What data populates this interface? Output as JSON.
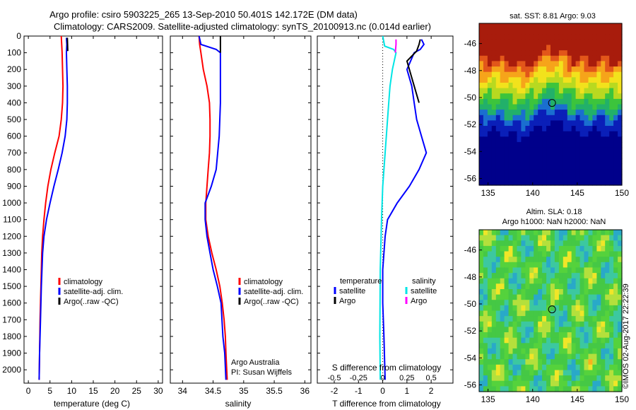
{
  "header": {
    "title_line1": "Argo profile: csiro 5903225_265 13-Sep-2010 50.401S 142.172E (DM data)",
    "title_line2": "Climatology: CARS2009. Satellite-adjusted climatology: synTS_20100913.nc (0.014d earlier)"
  },
  "colors": {
    "climatology": "#ff0000",
    "satellite": "#0000ff",
    "argo": "#000000",
    "salinity_satellite": "#00e5e5",
    "salinity_argo": "#ff00ff"
  },
  "chart_data": [
    {
      "type": "line",
      "name": "temperature_profile",
      "xlabel": "temperature (deg C)",
      "ylabel": "",
      "xlim": [
        -1,
        31
      ],
      "ylim": [
        2080,
        0
      ],
      "xticks": [
        "0",
        "5",
        "10",
        "15",
        "20",
        "25",
        "30"
      ],
      "yticks": [
        "0",
        "100",
        "200",
        "300",
        "400",
        "500",
        "600",
        "700",
        "800",
        "900",
        "1000",
        "1100",
        "1200",
        "1300",
        "1400",
        "1500",
        "1600",
        "1700",
        "1800",
        "1900",
        "2000"
      ],
      "legend": [
        "climatology",
        "satellite-adj. clim.",
        "Argo(..raw -QC)"
      ],
      "series": [
        {
          "name": "climatology",
          "color": "climatology",
          "points": [
            [
              7.6,
              0
            ],
            [
              7.7,
              50
            ],
            [
              7.8,
              100
            ],
            [
              7.9,
              200
            ],
            [
              8.0,
              300
            ],
            [
              7.9,
              400
            ],
            [
              7.6,
              500
            ],
            [
              7.1,
              600
            ],
            [
              6.1,
              700
            ],
            [
              5.2,
              800
            ],
            [
              4.5,
              900
            ],
            [
              4.0,
              1000
            ],
            [
              3.6,
              1100
            ],
            [
              3.3,
              1200
            ],
            [
              3.1,
              1300
            ],
            [
              2.9,
              1500
            ],
            [
              2.7,
              1700
            ],
            [
              2.6,
              1900
            ],
            [
              2.5,
              2060
            ]
          ]
        },
        {
          "name": "satellite-adj. clim.",
          "color": "satellite",
          "points": [
            [
              8.8,
              10
            ],
            [
              8.9,
              50
            ],
            [
              8.8,
              100
            ],
            [
              8.9,
              200
            ],
            [
              9.0,
              300
            ],
            [
              9.0,
              400
            ],
            [
              8.9,
              500
            ],
            [
              8.5,
              600
            ],
            [
              7.8,
              700
            ],
            [
              6.9,
              800
            ],
            [
              5.9,
              900
            ],
            [
              5.0,
              1000
            ],
            [
              4.2,
              1100
            ],
            [
              3.6,
              1200
            ],
            [
              3.3,
              1300
            ],
            [
              3.0,
              1500
            ],
            [
              2.8,
              1700
            ],
            [
              2.6,
              1900
            ],
            [
              2.5,
              2060
            ]
          ]
        },
        {
          "name": "Argo(..raw -QC)",
          "color": "argo",
          "points": [
            [
              9.0,
              10
            ],
            [
              9.05,
              50
            ],
            [
              9.1,
              90
            ]
          ]
        }
      ]
    },
    {
      "type": "line",
      "name": "salinity_profile",
      "xlabel": "salinity",
      "xlim": [
        33.8,
        36.1
      ],
      "ylim": [
        2080,
        0
      ],
      "xticks": [
        "34",
        "34.5",
        "35",
        "35.5",
        "36"
      ],
      "legend": [
        "climatology",
        "satellite-adj. clim.",
        "Argo(..raw -QC)"
      ],
      "annotation": [
        "Argo Australia",
        "PI: Susan Wijffels"
      ],
      "series": [
        {
          "name": "climatology",
          "color": "climatology",
          "points": [
            [
              34.27,
              0
            ],
            [
              34.28,
              50
            ],
            [
              34.3,
              100
            ],
            [
              34.34,
              200
            ],
            [
              34.4,
              300
            ],
            [
              34.44,
              400
            ],
            [
              34.45,
              500
            ],
            [
              34.45,
              600
            ],
            [
              34.44,
              700
            ],
            [
              34.42,
              800
            ],
            [
              34.4,
              900
            ],
            [
              34.38,
              1000
            ],
            [
              34.38,
              1100
            ],
            [
              34.42,
              1200
            ],
            [
              34.48,
              1300
            ],
            [
              34.55,
              1400
            ],
            [
              34.61,
              1500
            ],
            [
              34.65,
              1600
            ],
            [
              34.68,
              1700
            ],
            [
              34.7,
              1800
            ],
            [
              34.71,
              1900
            ],
            [
              34.73,
              2060
            ]
          ]
        },
        {
          "name": "satellite-adj. clim.",
          "color": "satellite",
          "points": [
            [
              34.27,
              0
            ],
            [
              34.3,
              50
            ],
            [
              34.55,
              80
            ],
            [
              34.62,
              100
            ],
            [
              34.62,
              200
            ],
            [
              34.62,
              300
            ],
            [
              34.62,
              400
            ],
            [
              34.6,
              600
            ],
            [
              34.55,
              800
            ],
            [
              34.47,
              900
            ],
            [
              34.37,
              1000
            ],
            [
              34.37,
              1100
            ],
            [
              34.4,
              1200
            ],
            [
              34.45,
              1300
            ],
            [
              34.5,
              1400
            ],
            [
              34.57,
              1500
            ],
            [
              34.63,
              1600
            ],
            [
              34.66,
              1800
            ],
            [
              34.69,
              1900
            ],
            [
              34.71,
              2060
            ]
          ]
        },
        {
          "name": "Argo(..raw -QC)",
          "color": "argo",
          "points": [
            [
              34.62,
              0
            ],
            [
              34.62,
              50
            ],
            [
              34.62,
              100
            ]
          ]
        }
      ]
    },
    {
      "type": "line",
      "name": "difference_profile",
      "xlabel": "T difference from climatology",
      "xlabel_top": "S difference from climatology",
      "xlim": [
        -2.7,
        2.9
      ],
      "ylim": [
        2080,
        0
      ],
      "xticks": [
        "-2",
        "-1",
        "0",
        "1",
        "2"
      ],
      "xticks_s": [
        "-0.5",
        "-0.25",
        "0",
        "0.25",
        "0.5"
      ],
      "legend_temperature": {
        "title": "temperature",
        "items": [
          "satellite",
          "Argo"
        ]
      },
      "legend_salinity": {
        "title": "salinity",
        "items": [
          "satellite",
          "Argo"
        ]
      },
      "series": [
        {
          "name": "temperature satellite",
          "color": "satellite",
          "points": [
            [
              1.6,
              20
            ],
            [
              1.7,
              50
            ],
            [
              1.55,
              80
            ],
            [
              1.3,
              100
            ],
            [
              1.0,
              200
            ],
            [
              1.2,
              300
            ],
            [
              1.3,
              400
            ],
            [
              1.4,
              500
            ],
            [
              1.6,
              600
            ],
            [
              1.8,
              700
            ],
            [
              1.5,
              800
            ],
            [
              1.1,
              900
            ],
            [
              0.6,
              1000
            ],
            [
              0.2,
              1100
            ],
            [
              0.1,
              1200
            ],
            [
              0.0,
              1400
            ],
            [
              0.0,
              1600
            ],
            [
              0.05,
              1800
            ],
            [
              0.1,
              2060
            ]
          ]
        },
        {
          "name": "temperature Argo",
          "color": "argo",
          "points": [
            [
              1.55,
              20
            ],
            [
              1.5,
              50
            ],
            [
              1.4,
              90
            ],
            [
              1.0,
              150
            ],
            [
              1.2,
              250
            ],
            [
              1.5,
              400
            ]
          ]
        },
        {
          "name": "salinity satellite",
          "color": "salinity_satellite",
          "points": [
            [
              0.0,
              0
            ],
            [
              0.08,
              60
            ],
            [
              0.45,
              80
            ],
            [
              0.55,
              100
            ],
            [
              0.4,
              200
            ],
            [
              0.3,
              300
            ],
            [
              0.25,
              400
            ],
            [
              0.2,
              500
            ],
            [
              0.1,
              700
            ],
            [
              0.0,
              900
            ],
            [
              -0.05,
              1100
            ],
            [
              -0.1,
              1400
            ],
            [
              -0.12,
              1800
            ],
            [
              -0.1,
              2060
            ]
          ]
        },
        {
          "name": "salinity Argo",
          "color": "salinity_argo",
          "points": [
            [
              0.55,
              20
            ],
            [
              0.55,
              50
            ],
            [
              0.52,
              100
            ]
          ]
        }
      ]
    },
    {
      "type": "heatmap",
      "name": "sst_map",
      "title": "sat. SST: 8.81  Argo: 9.03",
      "xlim": [
        134,
        150
      ],
      "ylim": [
        -56.5,
        -44.5
      ],
      "xticks": [
        "135",
        "140",
        "145",
        "150"
      ],
      "yticks": [
        "-46",
        "-48",
        "-50",
        "-52",
        "-54",
        "-56"
      ],
      "marker": [
        142.172,
        -50.401
      ]
    },
    {
      "type": "heatmap",
      "name": "sla_map",
      "title_line1": "Altim. SLA: 0.18",
      "title_line2": "Argo h1000: NaN h2000: NaN",
      "xlim": [
        134,
        150
      ],
      "ylim": [
        -56.5,
        -44.5
      ],
      "xticks": [
        "135",
        "140",
        "145",
        "150"
      ],
      "yticks": [
        "-46",
        "-48",
        "-50",
        "-52",
        "-54",
        "-56"
      ],
      "marker": [
        142.172,
        -50.401
      ],
      "credit": "©IMOS 02-Aug-2017 22:22:39"
    }
  ]
}
